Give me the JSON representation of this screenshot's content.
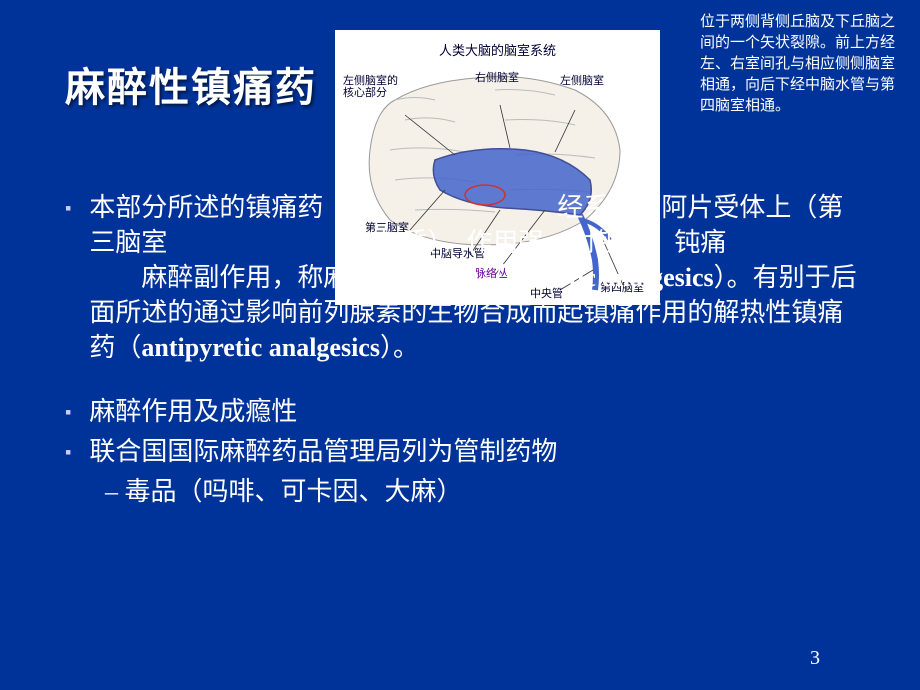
{
  "title": "麻醉性镇痛药",
  "sidebar_note": "位于两侧背侧丘脑及下丘脑之间的一个矢状裂隙。前上方经左、右室间孔与相应侧侧脑室相通，向后下经中脑水管与第四脑室相通。",
  "brain": {
    "title": "人类大脑的脑室系统",
    "labels": {
      "left_core": "左侧脑室的\n核心部分",
      "right_ventricle": "右侧脑室",
      "left_ventricle": "左侧脑室",
      "third_ventricle": "第三脑室",
      "aqueduct": "中脑导水管",
      "choroid": "脉络丛",
      "central_canal": "中央管",
      "fourth_ventricle": "第四脑室"
    }
  },
  "bullets": [
    {
      "text_before": "本部分所述的镇痛药",
      "text_mid1": "经系统的阿片受体上（第三脑室",
      "text_mid2": "灰质），作用强，对锐痛、钝痛",
      "text_mid3": "麻醉副作用，称麻醉性镇痛药（",
      "roman1": "narcotic analgesics",
      "text_mid4": "）。有别于后面所述的通过影响前列腺素的生物合成而起镇痛作用的解热性镇痛药（",
      "roman2": "antipyretic analgesics",
      "text_end": "）。"
    },
    {
      "text": "麻醉作用及成瘾性"
    },
    {
      "text": "联合国国际麻醉药品管理局列为管制药物",
      "sub": "– 毒品（吗啡、可卡因、大麻）"
    }
  ],
  "page_number": "3",
  "colors": {
    "background": "#003399",
    "text": "#ffffff",
    "bullet": "#ccccff",
    "purple": "#660099"
  }
}
